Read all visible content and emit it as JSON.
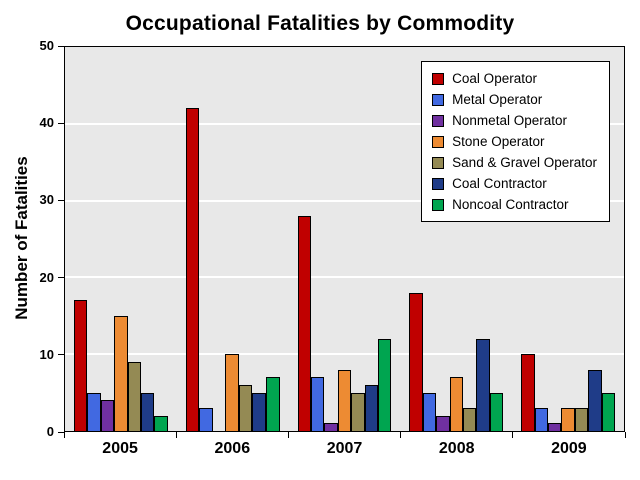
{
  "chart_data": {
    "type": "bar",
    "title": "Occupational Fatalities by Commodity",
    "xlabel": "",
    "ylabel": "Number of Fatalities",
    "ylim": [
      0,
      50
    ],
    "ytick_step": 10,
    "grid": true,
    "legend_position": "top-right",
    "plot_bg_color": "#E8E8E8",
    "grid_color": "#FFFFFF",
    "categories": [
      "2005",
      "2006",
      "2007",
      "2008",
      "2009"
    ],
    "series": [
      {
        "name": "Coal Operator",
        "color": "#C00000",
        "values": [
          17,
          42,
          28,
          18,
          10
        ]
      },
      {
        "name": "Metal Operator",
        "color": "#4169E1",
        "values": [
          5,
          3,
          7,
          5,
          3
        ]
      },
      {
        "name": "Nonmetal Operator",
        "color": "#7030A0",
        "values": [
          4,
          0,
          1,
          2,
          1
        ]
      },
      {
        "name": "Stone Operator",
        "color": "#ED8B33",
        "values": [
          15,
          10,
          8,
          7,
          3
        ]
      },
      {
        "name": "Sand & Gravel Operator",
        "color": "#948A54",
        "values": [
          9,
          6,
          5,
          3,
          3
        ]
      },
      {
        "name": "Coal Contractor",
        "color": "#1F3C88",
        "values": [
          5,
          5,
          6,
          12,
          8
        ]
      },
      {
        "name": "Noncoal Contractor",
        "color": "#00A550",
        "values": [
          2,
          7,
          12,
          5,
          5
        ]
      }
    ]
  }
}
